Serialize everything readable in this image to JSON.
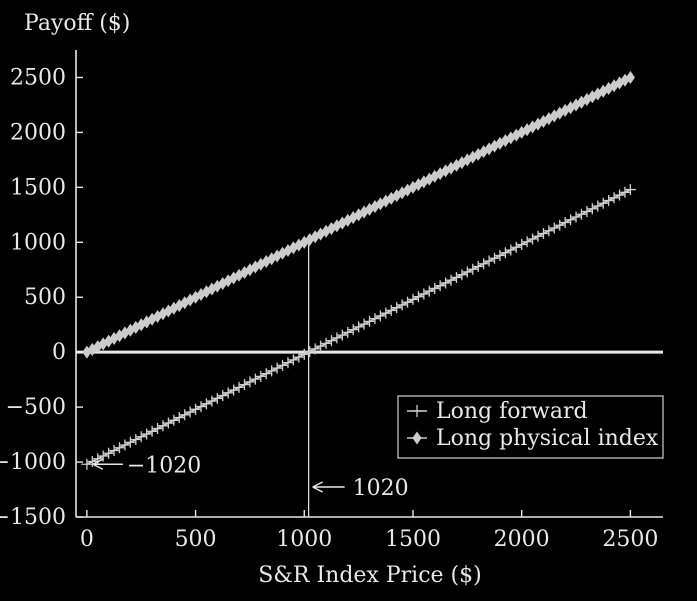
{
  "chart_data": {
    "type": "line",
    "ylabel": "Payoff ($)",
    "xlabel": "S&R Index Price ($)",
    "xlim": [
      -50,
      2650
    ],
    "ylim": [
      -1500,
      2750
    ],
    "x_ticks": [
      0,
      500,
      1000,
      1500,
      2000,
      2500
    ],
    "y_ticks": [
      -1500,
      -1000,
      -500,
      0,
      500,
      1000,
      1500,
      2000,
      2500
    ],
    "grid": false,
    "legend_position": "lower-right",
    "series": [
      {
        "name": "Long forward",
        "marker": "plus",
        "x_start": 0,
        "x_end": 2500,
        "x_step": 25,
        "slope": 1,
        "intercept": -1020
      },
      {
        "name": "Long physical index",
        "marker": "diamond",
        "x_start": 0,
        "x_end": 2500,
        "x_step": 25,
        "slope": 1,
        "intercept": 0
      }
    ],
    "annotations": [
      {
        "text": "1020",
        "x": 1020,
        "y": 0
      },
      {
        "text": "−1020",
        "x": 0,
        "y": -1020
      }
    ],
    "colors": {
      "background": "#000000",
      "foreground": "#e8e8e8",
      "marker": "#cccccc"
    }
  }
}
